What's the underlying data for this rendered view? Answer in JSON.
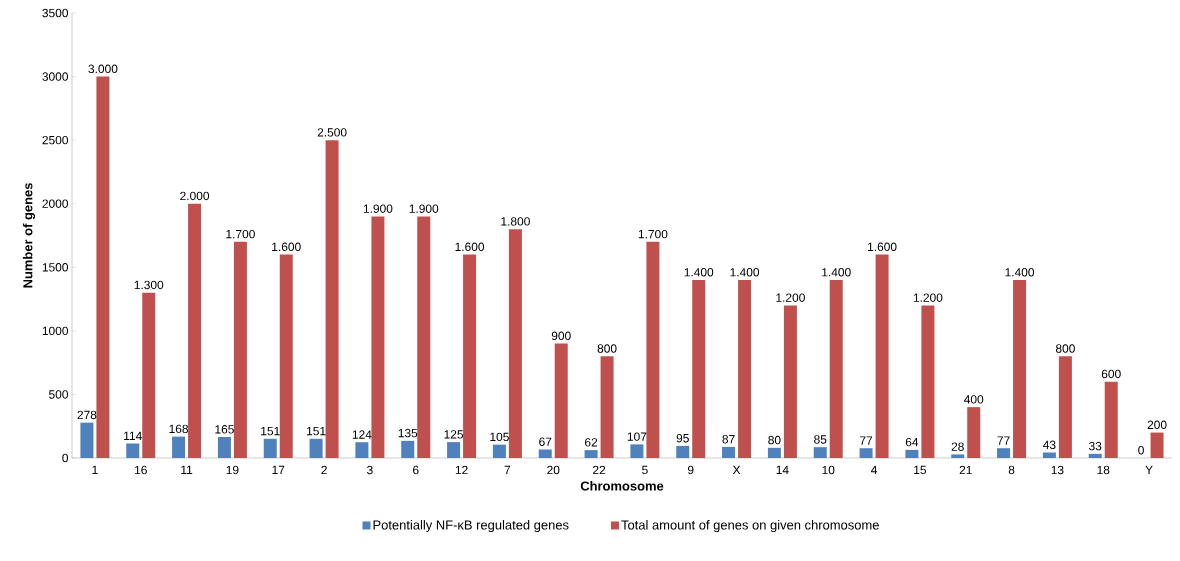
{
  "chart_data": {
    "type": "bar",
    "xlabel": "Chromosome",
    "ylabel": "Number of genes",
    "categories": [
      "1",
      "16",
      "11",
      "19",
      "17",
      "2",
      "3",
      "6",
      "12",
      "7",
      "20",
      "22",
      "5",
      "9",
      "X",
      "14",
      "10",
      "4",
      "15",
      "21",
      "8",
      "13",
      "18",
      "Y"
    ],
    "series": [
      {
        "name": "Potentially NF-κB regulated genes",
        "color": "#4f81bd",
        "values": [
          278,
          114,
          168,
          165,
          151,
          151,
          124,
          135,
          125,
          105,
          67,
          62,
          107,
          95,
          87,
          80,
          85,
          77,
          64,
          28,
          77,
          43,
          33,
          0
        ],
        "value_labels": [
          "278",
          "114",
          "168",
          "165",
          "151",
          "151",
          "124",
          "135",
          "125",
          "105",
          "67",
          "62",
          "107",
          "95",
          "87",
          "80",
          "85",
          "77",
          "64",
          "28",
          "77",
          "43",
          "33",
          "0"
        ]
      },
      {
        "name": "Total amount of genes on given chromosome",
        "color": "#c0504d",
        "values": [
          3000,
          1300,
          2000,
          1700,
          1600,
          2500,
          1900,
          1900,
          1600,
          1800,
          900,
          800,
          1700,
          1400,
          1400,
          1200,
          1400,
          1600,
          1200,
          400,
          1400,
          800,
          600,
          200
        ],
        "value_labels": [
          "3.000",
          "1.300",
          "2.000",
          "1.700",
          "1.600",
          "2.500",
          "1.900",
          "1.900",
          "1.600",
          "1.800",
          "900",
          "800",
          "1.700",
          "1.400",
          "1.400",
          "1.200",
          "1.400",
          "1.600",
          "1.200",
          "400",
          "1.400",
          "800",
          "600",
          "200"
        ]
      }
    ],
    "ylim": [
      0,
      3500
    ],
    "yticks": [
      0,
      500,
      1000,
      1500,
      2000,
      2500,
      3000,
      3500
    ],
    "grid": false,
    "legend": "bottom"
  }
}
